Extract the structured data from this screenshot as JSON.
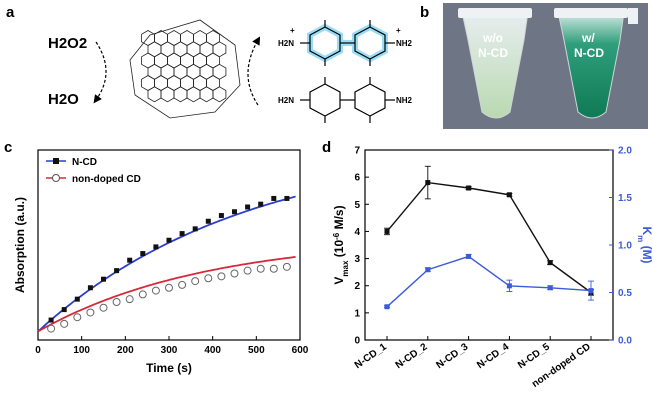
{
  "panels": {
    "a": {
      "letter": "a",
      "reactant": "H2O2",
      "product": "H2O",
      "amine_labels": [
        "H2N",
        "NH2",
        "H2N",
        "NH2"
      ],
      "charge": "+"
    },
    "b": {
      "letter": "b",
      "tube_left": [
        "w/o",
        "N-CD"
      ],
      "tube_right": [
        "w/",
        "N-CD"
      ]
    },
    "c": {
      "letter": "c"
    },
    "d": {
      "letter": "d"
    }
  },
  "colors": {
    "blue": "#2b3fcf",
    "red": "#d8283a",
    "black": "#111111",
    "km_blue": "#3b5bdb",
    "oxTMB": "#58c6f0"
  },
  "chart_data": [
    {
      "type": "scatter",
      "xlabel": "Time (s)",
      "ylabel": "Absorption (a.u.)",
      "xlim": [
        0,
        600
      ],
      "xticks": [
        "0",
        "100",
        "200",
        "300",
        "400",
        "500",
        "600"
      ],
      "legend_position": "top-left",
      "series": [
        {
          "name": "N-CD",
          "marker": "filled-square",
          "x": [
            30,
            60,
            90,
            120,
            150,
            180,
            210,
            240,
            270,
            300,
            330,
            360,
            390,
            420,
            450,
            480,
            510,
            540,
            570
          ],
          "y": [
            0.105,
            0.16,
            0.215,
            0.275,
            0.32,
            0.365,
            0.42,
            0.455,
            0.49,
            0.525,
            0.56,
            0.585,
            0.625,
            0.655,
            0.675,
            0.7,
            0.715,
            0.745,
            0.745
          ]
        },
        {
          "name": "non-doped CD",
          "marker": "open-circle",
          "x": [
            30,
            60,
            90,
            120,
            150,
            180,
            210,
            240,
            270,
            300,
            330,
            360,
            390,
            420,
            450,
            480,
            510,
            540,
            570
          ],
          "y": [
            0.06,
            0.085,
            0.12,
            0.145,
            0.17,
            0.2,
            0.215,
            0.24,
            0.26,
            0.275,
            0.29,
            0.31,
            0.325,
            0.335,
            0.35,
            0.365,
            0.375,
            0.375,
            0.385
          ]
        }
      ]
    },
    {
      "type": "line",
      "categories": [
        "N-CD_1",
        "N-CD_2",
        "N-CD_3",
        "N-CD_4",
        "N-CD_5",
        "non-doped CD"
      ],
      "ylabel_left": "Vmax (10^-6 M/s)",
      "ylabel_right": "Km (M)",
      "ylim_left": [
        0,
        7
      ],
      "ylim_right": [
        0,
        2.0
      ],
      "yticks_left": [
        "0",
        "1",
        "2",
        "3",
        "4",
        "5",
        "6",
        "7"
      ],
      "yticks_right": [
        "0.0",
        "0.5",
        "1.0",
        "1.5",
        "2.0"
      ],
      "series": [
        {
          "name": "Vmax",
          "axis": "left",
          "values": [
            4.0,
            5.8,
            5.6,
            5.35,
            2.85,
            1.75
          ],
          "errors": [
            0.12,
            0.6,
            0.05,
            0.05,
            0.07,
            0.1
          ]
        },
        {
          "name": "Km",
          "axis": "right",
          "values": [
            0.35,
            0.74,
            0.88,
            0.57,
            0.55,
            0.52
          ],
          "errors": [
            0.01,
            0.02,
            0.02,
            0.06,
            0.02,
            0.1
          ]
        }
      ]
    }
  ]
}
